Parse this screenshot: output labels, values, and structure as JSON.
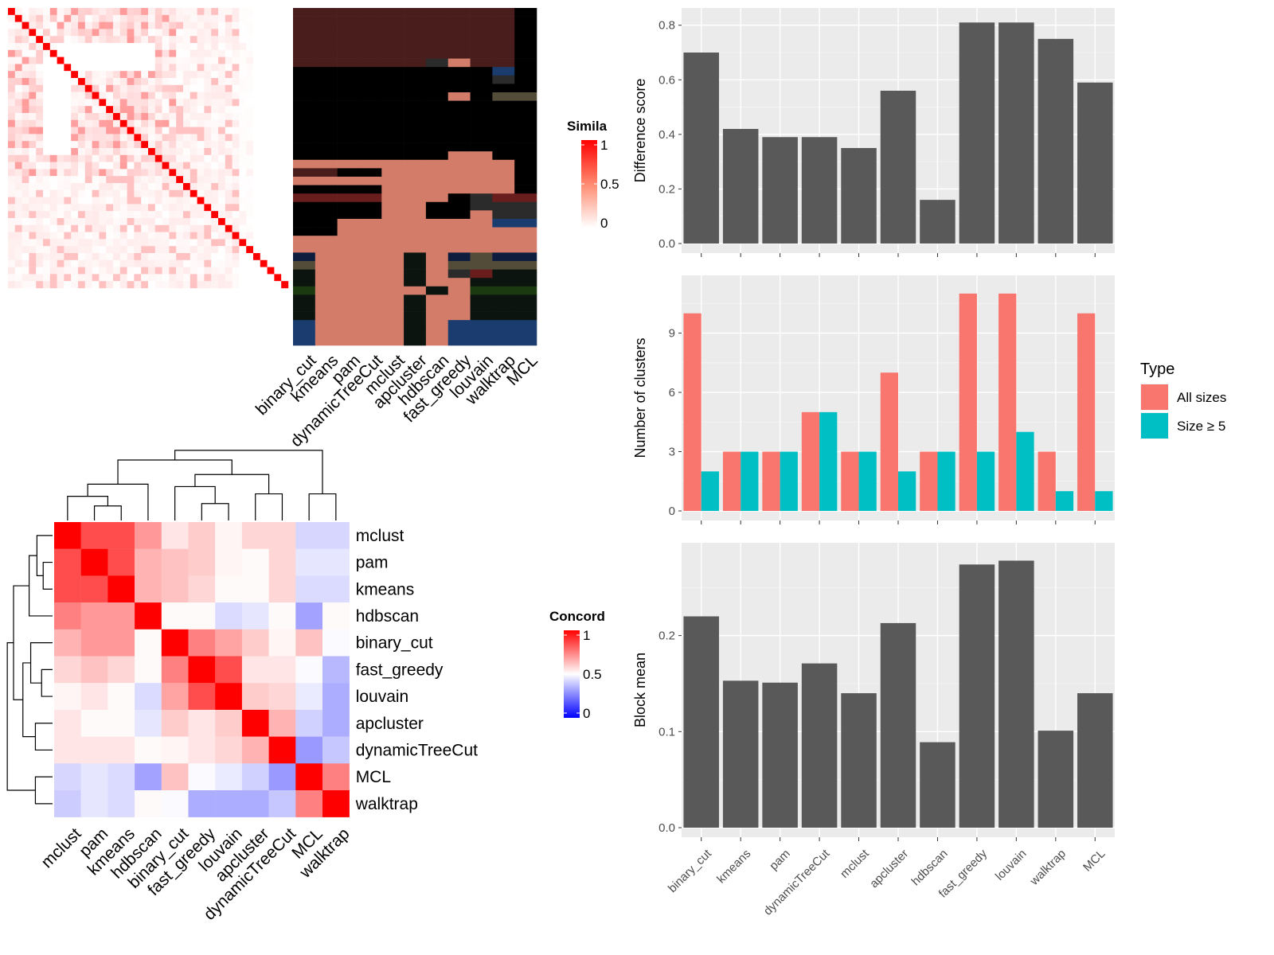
{
  "chart_data": [
    {
      "type": "heatmap",
      "name": "similarity-matrix",
      "legend": {
        "title": "Simila",
        "ticks": [
          "1",
          "0.5",
          "0"
        ]
      },
      "n": 40,
      "columns": [
        "binary_cut",
        "kmeans",
        "pam",
        "dynamicTreeCut",
        "mclust",
        "apcluster",
        "hdbscan",
        "fast_greedy",
        "louvain",
        "walktrap",
        "MCL"
      ]
    },
    {
      "type": "heatmap",
      "name": "concordance-matrix",
      "legend": {
        "title": "Concord",
        "ticks": [
          "1",
          "0.5",
          "0"
        ]
      },
      "rows": [
        "mclust",
        "pam",
        "kmeans",
        "hdbscan",
        "binary_cut",
        "fast_greedy",
        "louvain",
        "apcluster",
        "dynamicTreeCut",
        "MCL",
        "walktrap"
      ],
      "columns": [
        "mclust",
        "pam",
        "kmeans",
        "hdbscan",
        "binary_cut",
        "fast_greedy",
        "louvain",
        "apcluster",
        "dynamicTreeCut",
        "MCL",
        "walktrap"
      ],
      "values": [
        [
          1.0,
          0.85,
          0.85,
          0.7,
          0.55,
          0.6,
          0.52,
          0.58,
          0.58,
          0.42,
          0.42
        ],
        [
          0.85,
          1.0,
          0.85,
          0.65,
          0.62,
          0.6,
          0.52,
          0.51,
          0.58,
          0.45,
          0.45
        ],
        [
          0.85,
          0.85,
          1.0,
          0.65,
          0.62,
          0.58,
          0.51,
          0.51,
          0.58,
          0.43,
          0.43
        ],
        [
          0.75,
          0.7,
          0.7,
          1.0,
          0.51,
          0.51,
          0.43,
          0.45,
          0.51,
          0.32,
          0.51
        ],
        [
          0.65,
          0.7,
          0.7,
          0.51,
          1.0,
          0.75,
          0.68,
          0.6,
          0.52,
          0.62,
          0.49
        ],
        [
          0.58,
          0.62,
          0.58,
          0.51,
          0.75,
          1.0,
          0.85,
          0.55,
          0.55,
          0.49,
          0.36
        ],
        [
          0.52,
          0.55,
          0.51,
          0.43,
          0.68,
          0.85,
          1.0,
          0.6,
          0.58,
          0.46,
          0.34
        ],
        [
          0.55,
          0.51,
          0.51,
          0.45,
          0.6,
          0.55,
          0.6,
          1.0,
          0.65,
          0.41,
          0.34
        ],
        [
          0.55,
          0.55,
          0.55,
          0.51,
          0.52,
          0.55,
          0.58,
          0.65,
          1.0,
          0.3,
          0.39
        ],
        [
          0.42,
          0.45,
          0.43,
          0.32,
          0.62,
          0.49,
          0.46,
          0.41,
          0.3,
          1.0,
          0.75
        ],
        [
          0.4,
          0.45,
          0.43,
          0.51,
          0.49,
          0.34,
          0.34,
          0.34,
          0.39,
          0.75,
          1.0
        ]
      ]
    },
    {
      "type": "bar",
      "name": "difference-score",
      "ylabel": "Difference score",
      "categories": [
        "binary_cut",
        "kmeans",
        "pam",
        "dynamicTreeCut",
        "mclust",
        "apcluster",
        "hdbscan",
        "fast_greedy",
        "louvain",
        "walktrap",
        "MCL"
      ],
      "values": [
        0.7,
        0.42,
        0.39,
        0.39,
        0.35,
        0.56,
        0.16,
        0.81,
        0.81,
        0.75,
        0.59
      ],
      "ylim": [
        0,
        0.84
      ],
      "yticks": [
        "0.0",
        "0.2",
        "0.4",
        "0.6",
        "0.8"
      ],
      "ytick_values": [
        0,
        0.2,
        0.4,
        0.6,
        0.8
      ]
    },
    {
      "type": "bar",
      "name": "number-of-clusters",
      "ylabel": "Number of clusters",
      "categories": [
        "binary_cut",
        "kmeans",
        "pam",
        "dynamicTreeCut",
        "mclust",
        "apcluster",
        "hdbscan",
        "fast_greedy",
        "louvain",
        "walktrap",
        "MCL"
      ],
      "series": [
        {
          "name": "All sizes",
          "color": "#F8766D",
          "values": [
            10,
            3,
            3,
            5,
            3,
            7,
            3,
            11,
            11,
            3,
            10
          ]
        },
        {
          "name": "Size ≥ 5",
          "color": "#00BFC4",
          "values": [
            2,
            3,
            3,
            5,
            3,
            2,
            3,
            3,
            4,
            1,
            1
          ]
        }
      ],
      "ylim": [
        0,
        11.6
      ],
      "yticks": [
        "0",
        "3",
        "6",
        "9"
      ],
      "ytick_values": [
        0,
        3,
        6,
        9
      ],
      "legend": {
        "title": "Type",
        "position": "right"
      }
    },
    {
      "type": "bar",
      "name": "block-mean",
      "ylabel": "Block mean",
      "categories": [
        "binary_cut",
        "kmeans",
        "pam",
        "dynamicTreeCut",
        "mclust",
        "apcluster",
        "hdbscan",
        "fast_greedy",
        "louvain",
        "walktrap",
        "MCL"
      ],
      "values": [
        0.22,
        0.153,
        0.151,
        0.171,
        0.14,
        0.213,
        0.089,
        0.274,
        0.278,
        0.101,
        0.14
      ],
      "ylim": [
        0,
        0.29
      ],
      "yticks": [
        "0.0",
        "0.1",
        "0.2"
      ],
      "ytick_values": [
        0,
        0.1,
        0.2
      ]
    }
  ]
}
